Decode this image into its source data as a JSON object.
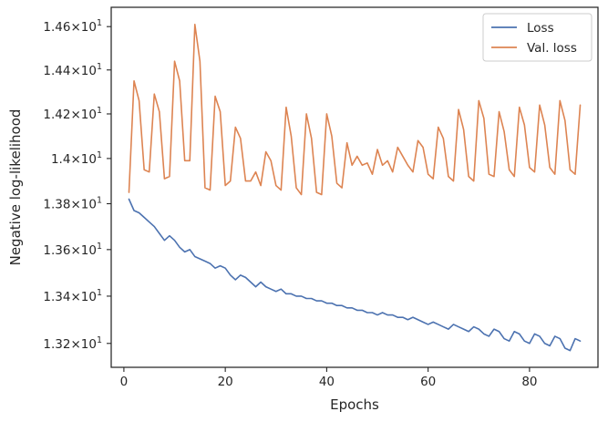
{
  "chart_data": {
    "type": "line",
    "xlabel": "Epochs",
    "ylabel": "Negative log-likelihood",
    "xlim": [
      -2.5,
      93.5
    ],
    "ylim": [
      13.1,
      14.69
    ],
    "yscale": "log",
    "grid": false,
    "legend_position": "top-right",
    "x_ticks": [
      0,
      20,
      40,
      60,
      80
    ],
    "y_ticks": [
      {
        "value": 13.2,
        "mant": "1.32",
        "base": "10",
        "exp": "1"
      },
      {
        "value": 13.4,
        "mant": "1.34",
        "base": "10",
        "exp": "1"
      },
      {
        "value": 13.6,
        "mant": "1.36",
        "base": "10",
        "exp": "1"
      },
      {
        "value": 13.8,
        "mant": "1.38",
        "base": "10",
        "exp": "1"
      },
      {
        "value": 14.0,
        "mant": "1.4",
        "base": "10",
        "exp": "1"
      },
      {
        "value": 14.2,
        "mant": "1.42",
        "base": "10",
        "exp": "1"
      },
      {
        "value": 14.4,
        "mant": "1.44",
        "base": "10",
        "exp": "1"
      },
      {
        "value": 14.6,
        "mant": "1.46",
        "base": "10",
        "exp": "1"
      }
    ],
    "x": [
      1,
      2,
      3,
      4,
      5,
      6,
      7,
      8,
      9,
      10,
      11,
      12,
      13,
      14,
      15,
      16,
      17,
      18,
      19,
      20,
      21,
      22,
      23,
      24,
      25,
      26,
      27,
      28,
      29,
      30,
      31,
      32,
      33,
      34,
      35,
      36,
      37,
      38,
      39,
      40,
      41,
      42,
      43,
      44,
      45,
      46,
      47,
      48,
      49,
      50,
      51,
      52,
      53,
      54,
      55,
      56,
      57,
      58,
      59,
      60,
      61,
      62,
      63,
      64,
      65,
      66,
      67,
      68,
      69,
      70,
      71,
      72,
      73,
      74,
      75,
      76,
      77,
      78,
      79,
      80,
      81,
      82,
      83,
      84,
      85,
      86,
      87,
      88,
      89,
      90
    ],
    "series": [
      {
        "name": "Loss",
        "color": "#4c72b0",
        "values": [
          13.82,
          13.77,
          13.76,
          13.74,
          13.72,
          13.7,
          13.67,
          13.64,
          13.66,
          13.64,
          13.61,
          13.59,
          13.6,
          13.57,
          13.56,
          13.55,
          13.54,
          13.52,
          13.53,
          13.52,
          13.49,
          13.47,
          13.49,
          13.48,
          13.46,
          13.44,
          13.46,
          13.44,
          13.43,
          13.42,
          13.43,
          13.41,
          13.41,
          13.4,
          13.4,
          13.39,
          13.39,
          13.38,
          13.38,
          13.37,
          13.37,
          13.36,
          13.36,
          13.35,
          13.35,
          13.34,
          13.34,
          13.33,
          13.33,
          13.32,
          13.33,
          13.32,
          13.32,
          13.31,
          13.31,
          13.3,
          13.31,
          13.3,
          13.29,
          13.28,
          13.29,
          13.28,
          13.27,
          13.26,
          13.28,
          13.27,
          13.26,
          13.25,
          13.27,
          13.26,
          13.24,
          13.23,
          13.26,
          13.25,
          13.22,
          13.21,
          13.25,
          13.24,
          13.21,
          13.2,
          13.24,
          13.23,
          13.2,
          13.19,
          13.23,
          13.22,
          13.18,
          13.17,
          13.22,
          13.21
        ]
      },
      {
        "name": "Val. loss",
        "color": "#dd8452",
        "values": [
          13.85,
          14.35,
          14.26,
          13.95,
          13.94,
          14.29,
          14.21,
          13.91,
          13.92,
          14.44,
          14.35,
          13.99,
          13.99,
          14.61,
          14.44,
          13.87,
          13.86,
          14.28,
          14.21,
          13.88,
          13.9,
          14.14,
          14.09,
          13.9,
          13.9,
          13.94,
          13.88,
          14.03,
          13.99,
          13.88,
          13.86,
          14.23,
          14.1,
          13.87,
          13.84,
          14.2,
          14.09,
          13.85,
          13.84,
          14.2,
          14.1,
          13.89,
          13.87,
          14.07,
          13.97,
          14.01,
          13.97,
          13.98,
          13.93,
          14.04,
          13.97,
          13.99,
          13.94,
          14.05,
          14.01,
          13.97,
          13.94,
          14.08,
          14.05,
          13.93,
          13.91,
          14.14,
          14.09,
          13.92,
          13.9,
          14.22,
          14.13,
          13.92,
          13.9,
          14.26,
          14.18,
          13.93,
          13.92,
          14.21,
          14.12,
          13.95,
          13.92,
          14.23,
          14.15,
          13.96,
          13.94,
          14.24,
          14.15,
          13.96,
          13.93,
          14.26,
          14.17,
          13.95,
          13.93,
          14.24
        ]
      }
    ]
  }
}
